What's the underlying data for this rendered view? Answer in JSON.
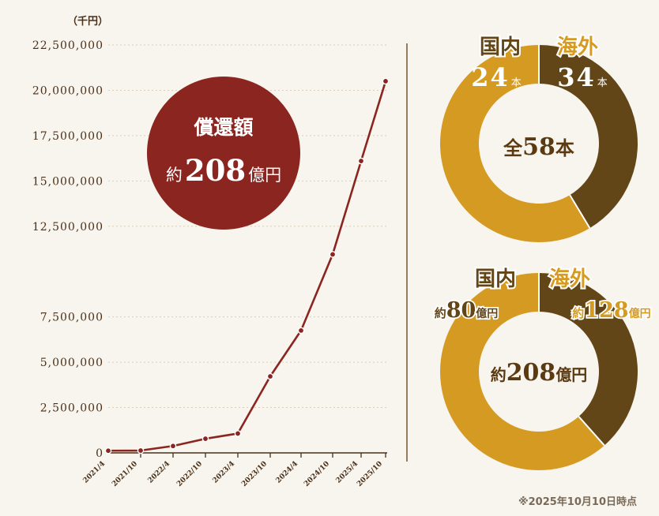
{
  "chart_data": [
    {
      "type": "line",
      "unit_label": "（千円）",
      "categories": [
        "2021/4",
        "2021/10",
        "2022/4",
        "2022/10",
        "2023/4",
        "2023/10",
        "2024/4",
        "2024/10",
        "2025/4",
        "2025/10"
      ],
      "values": [
        120000,
        130000,
        380000,
        780000,
        1070000,
        4220000,
        6750000,
        10950000,
        16100000,
        20500000
      ],
      "ylim": [
        0,
        22500000
      ],
      "y_ticks": [
        0,
        2500000,
        5000000,
        7500000,
        12500000,
        15000000,
        17500000,
        20000000,
        22500000
      ],
      "y_tick_labels": [
        "0",
        "2,500,000",
        "5,000,000",
        "7,500,000",
        "12,500,000",
        "15,000,000",
        "17,500,000",
        "20,000,000",
        "22,500,000"
      ],
      "line_color": "#8b2520"
    },
    {
      "type": "pie",
      "style": "donut",
      "slices": [
        {
          "name": "国内",
          "value": 24,
          "value_text": "24",
          "unit": "本",
          "color": "#634618"
        },
        {
          "name": "海外",
          "value": 34,
          "value_text": "34",
          "unit": "本",
          "color": "#d59a22"
        }
      ],
      "center_prefix": "全",
      "center_value": "58",
      "center_unit": "本"
    },
    {
      "type": "pie",
      "style": "donut",
      "slices": [
        {
          "name": "国内",
          "value": 80,
          "prefix": "約",
          "value_text": "80",
          "unit": "億円",
          "color": "#634618"
        },
        {
          "name": "海外",
          "value": 128,
          "prefix": "約",
          "value_text": "128",
          "unit": "億円",
          "color": "#d59a22"
        }
      ],
      "center_prefix": "約",
      "center_value": "208",
      "center_unit": "億円"
    }
  ],
  "badge": {
    "title": "償還額",
    "prefix": "約",
    "amount": "208",
    "unit": "億円",
    "color": "#8b2520"
  },
  "footnote": "※2025年10月10日時点",
  "colors": {
    "background": "#f8f4ee",
    "dark_brown": "#634618",
    "gold": "#d59a22",
    "text_brown": "#5b3a12",
    "grid": "#dccdb7",
    "axis": "#4a3018"
  }
}
